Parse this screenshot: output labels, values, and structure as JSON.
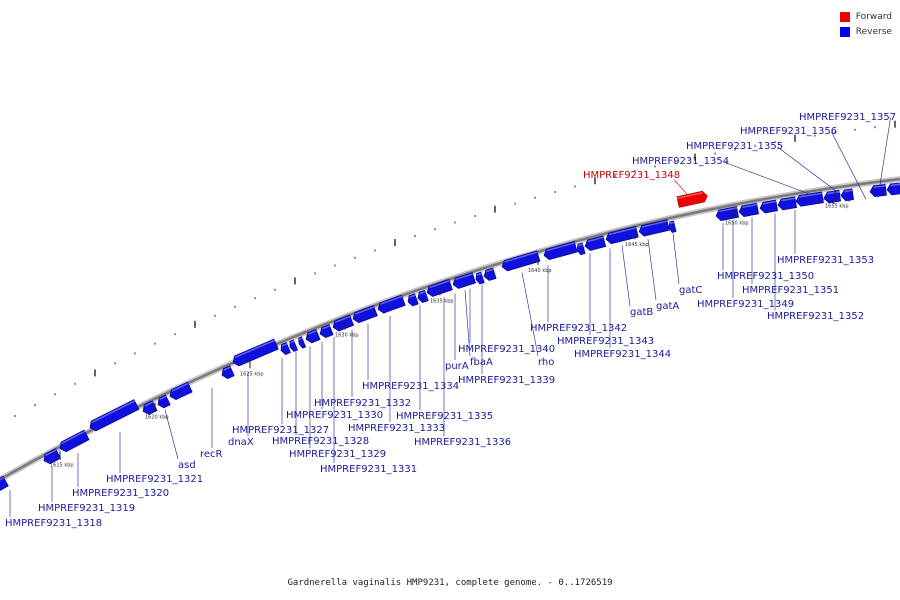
{
  "caption": "Gardnerella vaginalis HMP9231, complete genome. - 0..1726519",
  "legend": [
    {
      "label": "Forward",
      "color": "#ee0000"
    },
    {
      "label": "Reverse",
      "color": "#0000ee"
    }
  ],
  "colors": {
    "forward": "#ee0000",
    "reverse": "#1010dd",
    "backbone": "#888888",
    "label_forward": "#cc0000",
    "label_reverse": "#1a1a99"
  },
  "scale_ticks": [
    "1615 kbp",
    "1620 kbp",
    "1625 kbp",
    "1630 kbp",
    "1635 kbp",
    "1640 kbp",
    "1645 kbp",
    "1650 kbp",
    "1655 kbp"
  ],
  "genes": [
    {
      "name": "HMPREF9231_1318",
      "strand": "reverse"
    },
    {
      "name": "HMPREF9231_1319",
      "strand": "reverse"
    },
    {
      "name": "HMPREF9231_1320",
      "strand": "reverse"
    },
    {
      "name": "HMPREF9231_1321",
      "strand": "reverse"
    },
    {
      "name": "asd",
      "strand": "reverse"
    },
    {
      "name": "recR",
      "strand": "reverse"
    },
    {
      "name": "dnaX",
      "strand": "reverse"
    },
    {
      "name": "HMPREF9231_1327",
      "strand": "reverse"
    },
    {
      "name": "HMPREF9231_1328",
      "strand": "reverse"
    },
    {
      "name": "HMPREF9231_1329",
      "strand": "reverse"
    },
    {
      "name": "HMPREF9231_1330",
      "strand": "reverse"
    },
    {
      "name": "HMPREF9231_1331",
      "strand": "reverse"
    },
    {
      "name": "HMPREF9231_1332",
      "strand": "reverse"
    },
    {
      "name": "HMPREF9231_1333",
      "strand": "reverse"
    },
    {
      "name": "HMPREF9231_1334",
      "strand": "reverse"
    },
    {
      "name": "HMPREF9231_1335",
      "strand": "reverse"
    },
    {
      "name": "HMPREF9231_1336",
      "strand": "reverse"
    },
    {
      "name": "purA",
      "strand": "reverse"
    },
    {
      "name": "fbaA",
      "strand": "reverse"
    },
    {
      "name": "HMPREF9231_1339",
      "strand": "reverse"
    },
    {
      "name": "HMPREF9231_1340",
      "strand": "reverse"
    },
    {
      "name": "rho",
      "strand": "reverse"
    },
    {
      "name": "HMPREF9231_1342",
      "strand": "reverse"
    },
    {
      "name": "HMPREF9231_1343",
      "strand": "reverse"
    },
    {
      "name": "HMPREF9231_1344",
      "strand": "reverse"
    },
    {
      "name": "gatB",
      "strand": "reverse"
    },
    {
      "name": "gatA",
      "strand": "reverse"
    },
    {
      "name": "gatC",
      "strand": "reverse"
    },
    {
      "name": "HMPREF9231_1348",
      "strand": "forward"
    },
    {
      "name": "HMPREF9231_1349",
      "strand": "reverse"
    },
    {
      "name": "HMPREF9231_1350",
      "strand": "reverse"
    },
    {
      "name": "HMPREF9231_1351",
      "strand": "reverse"
    },
    {
      "name": "HMPREF9231_1352",
      "strand": "reverse"
    },
    {
      "name": "HMPREF9231_1353",
      "strand": "reverse"
    },
    {
      "name": "HMPREF9231_1354",
      "strand": "reverse"
    },
    {
      "name": "HMPREF9231_1355",
      "strand": "reverse"
    },
    {
      "name": "HMPREF9231_1356",
      "strand": "reverse"
    },
    {
      "name": "HMPREF9231_1357",
      "strand": "reverse"
    }
  ]
}
